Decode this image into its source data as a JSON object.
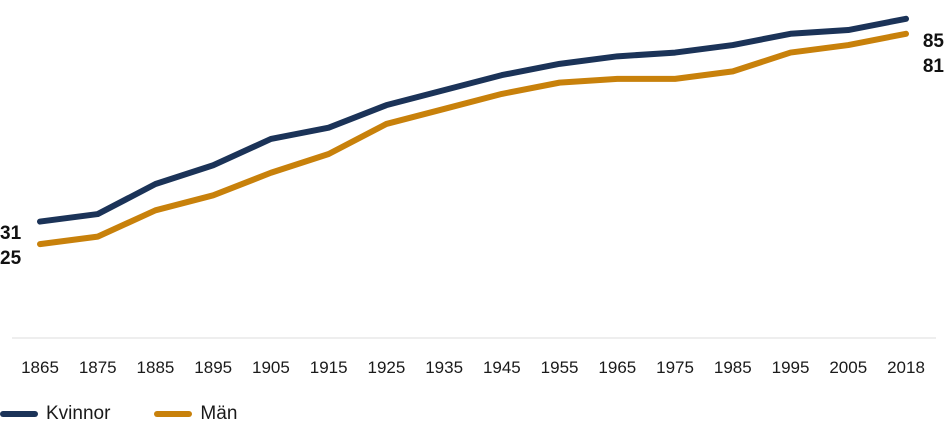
{
  "chart_data": {
    "type": "line",
    "categories": [
      "1865",
      "1875",
      "1885",
      "1895",
      "1905",
      "1915",
      "1925",
      "1935",
      "1945",
      "1955",
      "1965",
      "1975",
      "1985",
      "1995",
      "2005",
      "2018"
    ],
    "series": [
      {
        "name": "Kvinnor",
        "color": "#1b3358",
        "values": [
          31,
          33,
          41,
          46,
          53,
          56,
          62,
          66,
          70,
          73,
          75,
          76,
          78,
          81,
          82,
          85
        ],
        "end_labels": {
          "first": "31",
          "last": "85"
        }
      },
      {
        "name": "Män",
        "color": "#c8810b",
        "values": [
          25,
          27,
          34,
          38,
          44,
          49,
          57,
          61,
          65,
          68,
          69,
          69,
          71,
          76,
          78,
          81
        ],
        "end_labels": {
          "first": "25",
          "last": "81"
        }
      }
    ],
    "ylim": [
      0,
      90
    ],
    "grid": false,
    "legend_position": "bottom-left"
  }
}
